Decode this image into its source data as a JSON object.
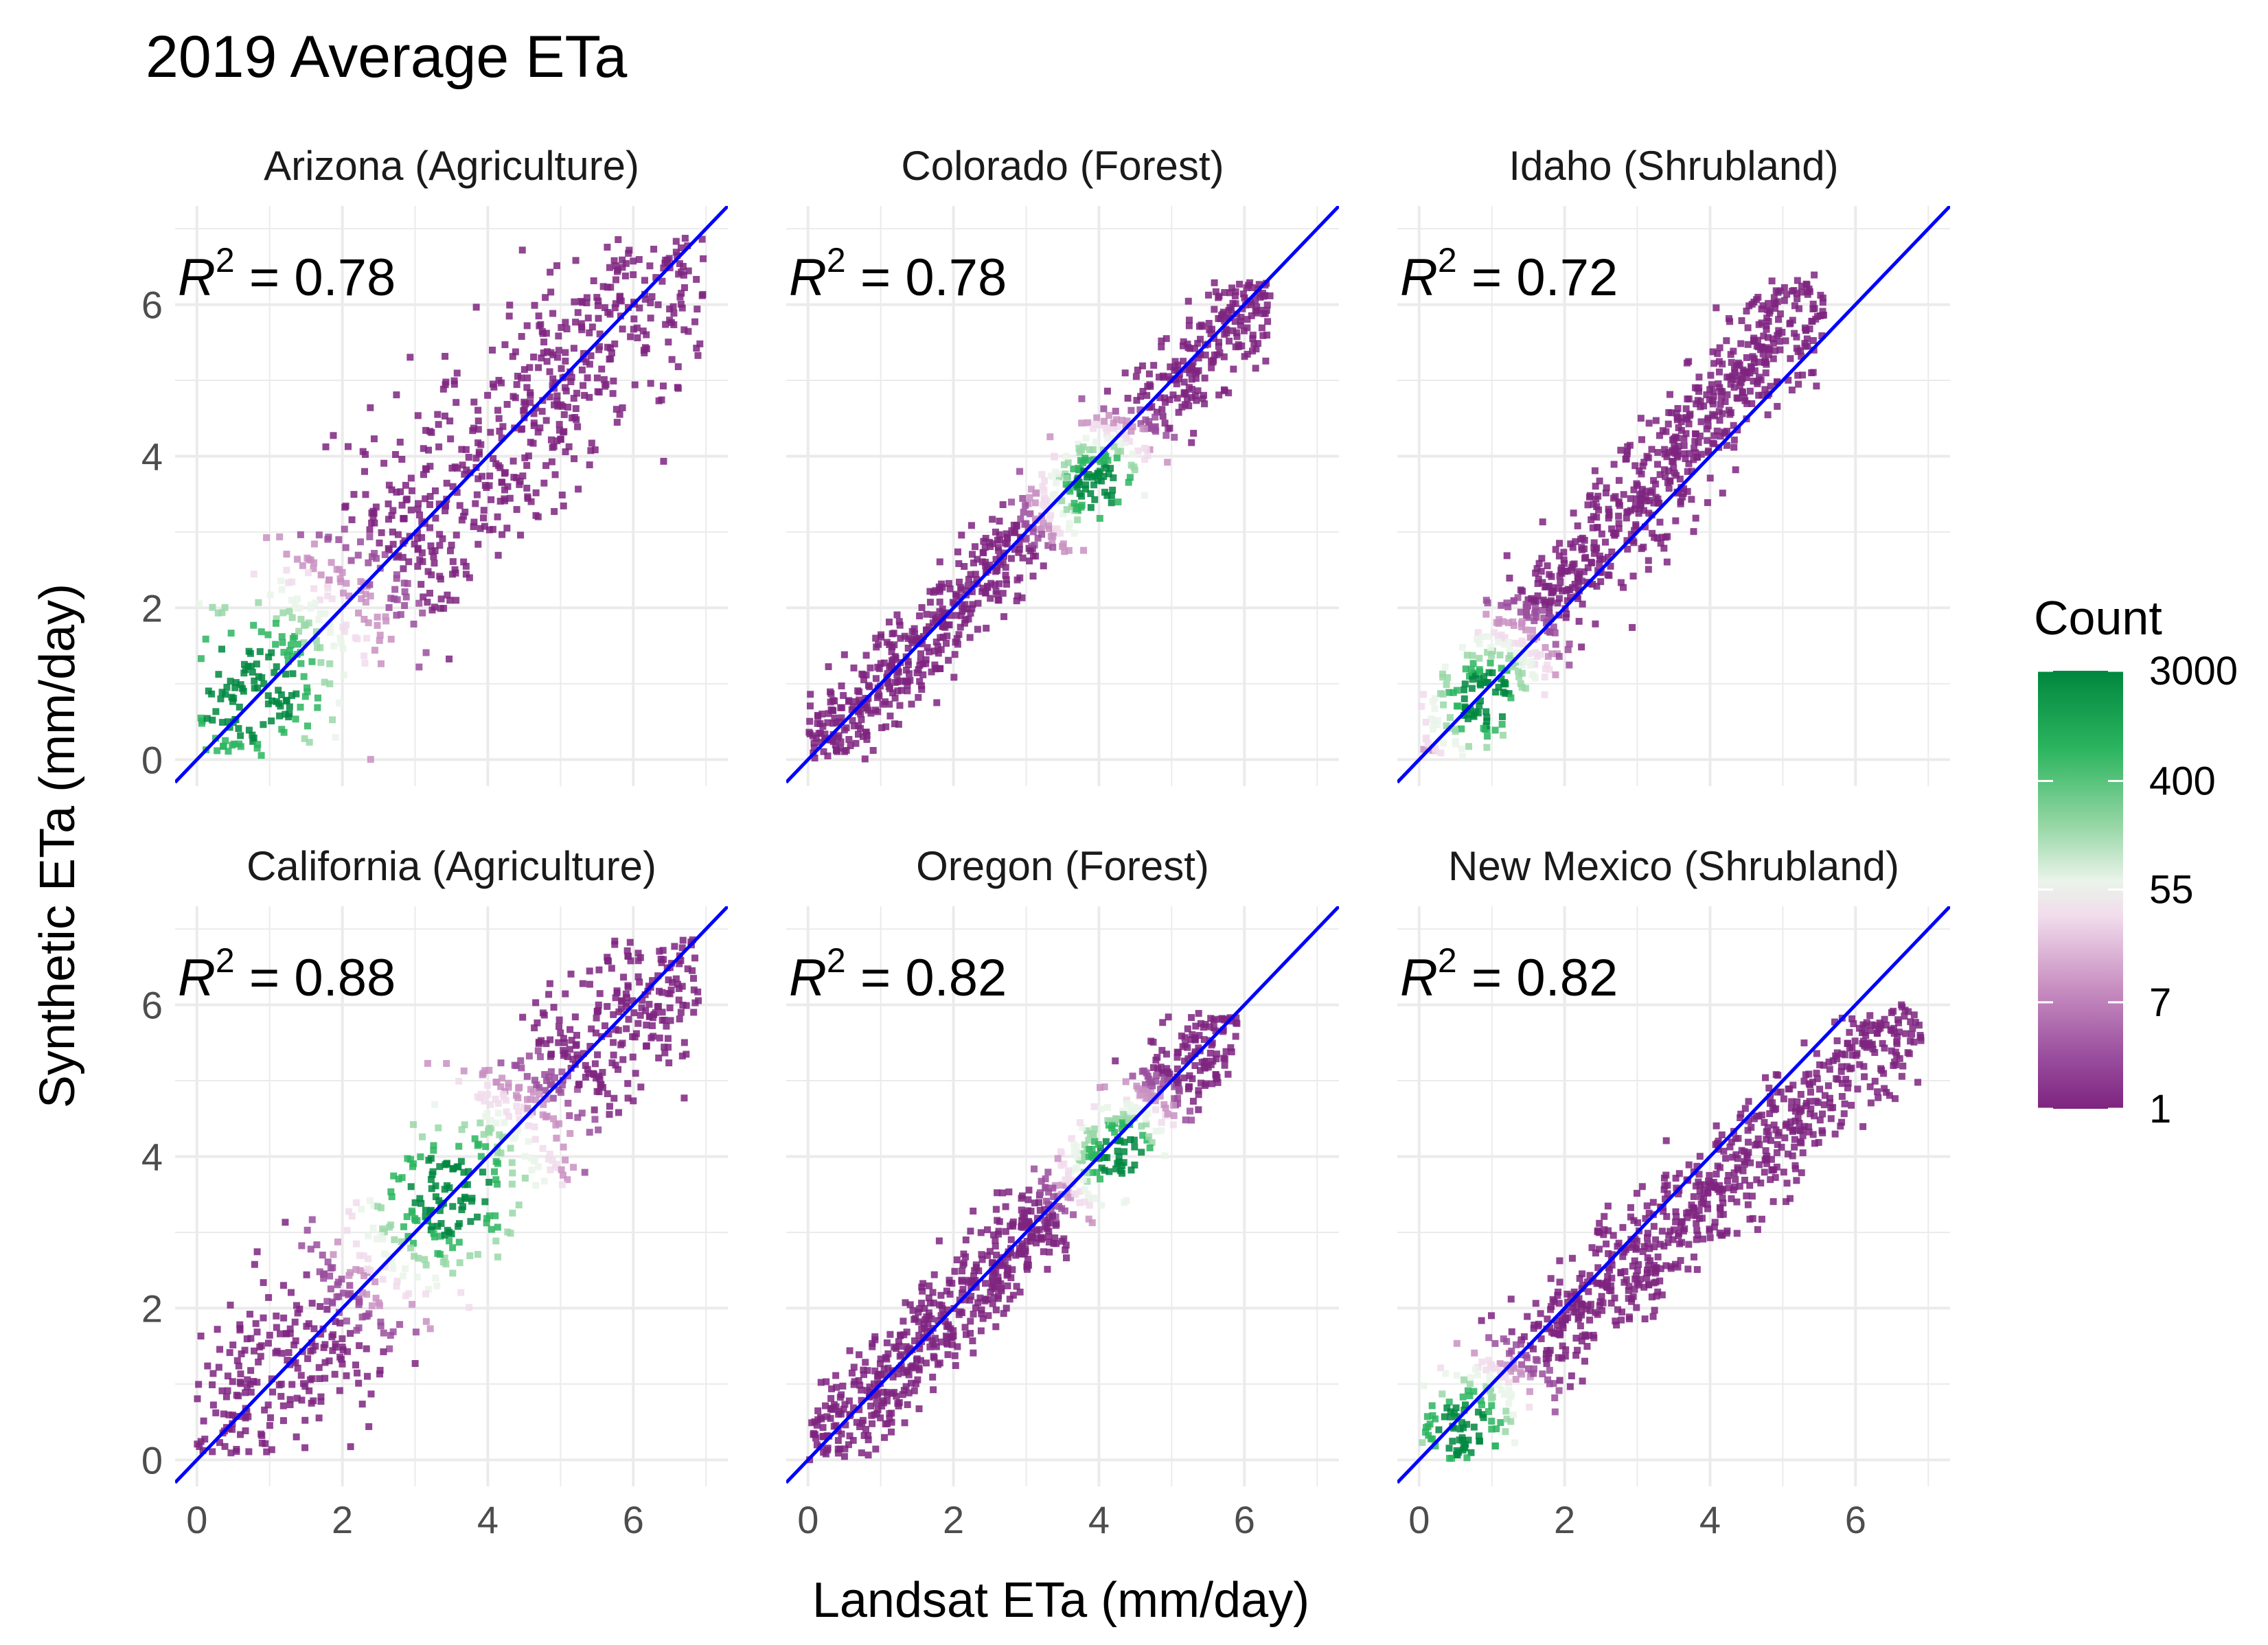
{
  "chart_data": {
    "type": "heatmap",
    "title": "2019 Average ETa",
    "xlabel": "Landsat ETa (mm/day)",
    "ylabel": "Synthetic ETa (mm/day)",
    "xlim": [
      -0.3,
      7.3
    ],
    "ylim": [
      -0.35,
      7.3
    ],
    "x_ticks": [
      0,
      2,
      4,
      6
    ],
    "y_ticks": [
      0,
      2,
      4,
      6
    ],
    "grid": true,
    "reference_line": "1:1 line (y = x)",
    "reference_line_color": "#0000ff",
    "legend": {
      "title": "Count",
      "position": "right",
      "scale": "log",
      "labels": [
        "3000",
        "400",
        "55",
        "7",
        "1"
      ],
      "values": [
        3000,
        400,
        55,
        7,
        1
      ],
      "colors": [
        "#00873f",
        "#2cb55f",
        "#9ad8a8",
        "#eaf4ea",
        "#f1dcec",
        "#c990c2",
        "#9a4e9e",
        "#7e2480"
      ]
    },
    "panels": [
      {
        "name": "Arizona (Agriculture)",
        "r2": "0.78",
        "r2_label": "R",
        "r2_sup": "2",
        "cloud": {
          "xmax": 7.0,
          "ymax": 6.9,
          "spread": 1.3,
          "peak_x": 0.7,
          "peak_y": 0.9
        }
      },
      {
        "name": "Colorado (Forest)",
        "r2": "0.78",
        "r2_label": "R",
        "r2_sup": "2",
        "cloud": {
          "xmax": 6.4,
          "ymax": 6.3,
          "spread": 0.6,
          "peak_x": 4.0,
          "peak_y": 3.6
        }
      },
      {
        "name": "Idaho (Shrubland)",
        "r2": "0.72",
        "r2_label": "R",
        "r2_sup": "2",
        "cloud": {
          "xmax": 5.6,
          "ymax": 6.4,
          "spread": 0.7,
          "peak_x": 0.9,
          "peak_y": 0.8
        }
      },
      {
        "name": "California (Agriculture)",
        "r2": "0.88",
        "r2_label": "R",
        "r2_sup": "2",
        "cloud": {
          "xmax": 6.9,
          "ymax": 6.9,
          "spread": 1.1,
          "peak_x": 3.5,
          "peak_y": 3.5
        }
      },
      {
        "name": "Oregon (Forest)",
        "r2": "0.82",
        "r2_label": "R",
        "r2_sup": "2",
        "cloud": {
          "xmax": 5.9,
          "ymax": 5.9,
          "spread": 0.6,
          "peak_x": 4.3,
          "peak_y": 4.0
        }
      },
      {
        "name": "New Mexico (Shrubland)",
        "r2": "0.82",
        "r2_label": "R",
        "r2_sup": "2",
        "cloud": {
          "xmax": 6.9,
          "ymax": 6.0,
          "spread": 0.7,
          "peak_x": 0.6,
          "peak_y": 0.4
        }
      }
    ]
  }
}
